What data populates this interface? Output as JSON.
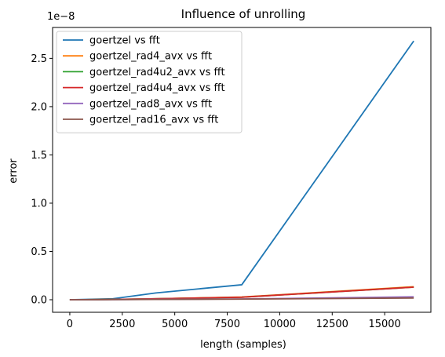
{
  "chart_data": {
    "type": "line",
    "title": "Influence of unrolling",
    "xlabel": "length (samples)",
    "ylabel": "error",
    "y_offset_text": "1e−8",
    "y_scale_exponent": -8,
    "xlim": [
      -820,
      17200
    ],
    "ylim": [
      -0.13,
      2.82
    ],
    "x_ticks": [
      0,
      2500,
      5000,
      7500,
      10000,
      12500,
      15000
    ],
    "x_tick_labels": [
      "0",
      "2500",
      "5000",
      "7500",
      "10000",
      "12500",
      "15000"
    ],
    "y_ticks": [
      0.0,
      0.5,
      1.0,
      1.5,
      2.0,
      2.5
    ],
    "y_tick_labels": [
      "0.0",
      "0.5",
      "1.0",
      "1.5",
      "2.0",
      "2.5"
    ],
    "grid": false,
    "legend_position": "top-left",
    "x": [
      0,
      2048,
      4096,
      8192,
      16384
    ],
    "series": [
      {
        "name": "goertzel vs fft",
        "color": "#1f77b4",
        "values": [
          0.0,
          0.01,
          0.07,
          0.155,
          2.68
        ]
      },
      {
        "name": "goertzel_rad4_avx vs fft",
        "color": "#ff7f0e",
        "values": [
          0.0,
          0.003,
          0.01,
          0.028,
          0.135
        ]
      },
      {
        "name": "goertzel_rad4u2_avx vs fft",
        "color": "#2ca02c",
        "values": [
          0.0,
          0.003,
          0.01,
          0.026,
          0.13
        ]
      },
      {
        "name": "goertzel_rad4u4_avx vs fft",
        "color": "#d62728",
        "values": [
          0.0,
          0.003,
          0.01,
          0.026,
          0.13
        ]
      },
      {
        "name": "goertzel_rad8_avx vs fft",
        "color": "#9467bd",
        "values": [
          0.0,
          0.001,
          0.004,
          0.008,
          0.03
        ]
      },
      {
        "name": "goertzel_rad16_avx vs fft",
        "color": "#8c564b",
        "values": [
          0.0,
          0.001,
          0.003,
          0.006,
          0.018
        ]
      }
    ]
  }
}
